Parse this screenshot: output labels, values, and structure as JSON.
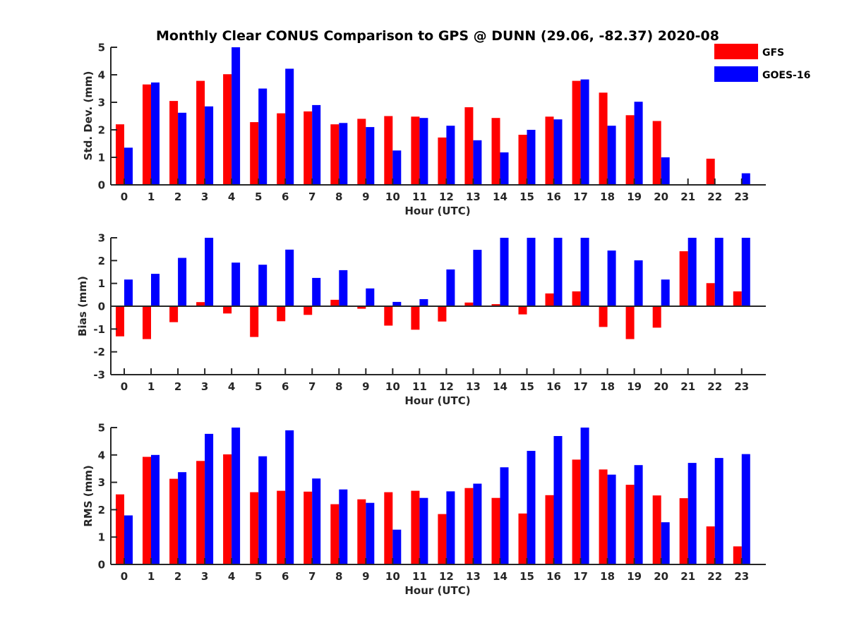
{
  "chart_data": {
    "title": "Monthly Clear CONUS Comparison to GPS @ DUNN (29.06, -82.37) 2020-08",
    "type": "bar",
    "legend": {
      "placement": "top-right",
      "entries": [
        {
          "name": "GFS",
          "color": "#ff0000"
        },
        {
          "name": "GOES-16",
          "color": "#0000ff"
        }
      ]
    },
    "categories": [
      "0",
      "1",
      "2",
      "3",
      "4",
      "5",
      "6",
      "7",
      "8",
      "9",
      "10",
      "11",
      "12",
      "13",
      "14",
      "15",
      "16",
      "17",
      "18",
      "19",
      "20",
      "21",
      "22",
      "23"
    ],
    "xlim": [
      -0.5,
      23.9
    ],
    "panels": [
      {
        "id": "stddev",
        "type": "bar",
        "xlabel": "Hour (UTC)",
        "ylabel": "Std. Dev. (mm)",
        "ylim": [
          0,
          5
        ],
        "yticks": [
          0,
          1,
          2,
          3,
          4,
          5
        ],
        "zero_line": false,
        "series": [
          {
            "name": "GFS",
            "color": "#ff0000",
            "values": [
              2.2,
              3.65,
              3.05,
              3.78,
              4.02,
              2.28,
              2.6,
              2.67,
              2.2,
              2.4,
              2.5,
              2.48,
              1.72,
              2.82,
              2.43,
              1.82,
              2.48,
              3.78,
              3.35,
              2.53,
              2.32,
              0.0,
              0.95,
              0.02
            ]
          },
          {
            "name": "GOES-16",
            "color": "#0000ff",
            "values": [
              1.35,
              3.72,
              2.62,
              2.85,
              5.0,
              3.5,
              4.22,
              2.9,
              2.25,
              2.1,
              1.25,
              2.43,
              2.15,
              1.62,
              1.18,
              2.0,
              2.38,
              3.83,
              2.15,
              3.02,
              1.0,
              0.0,
              0.02,
              0.42
            ]
          }
        ]
      },
      {
        "id": "bias",
        "type": "bar",
        "xlabel": "Hour (UTC)",
        "ylabel": "Bias (mm)",
        "ylim": [
          -3,
          3
        ],
        "yticks": [
          -3,
          -2,
          -1,
          0,
          1,
          2,
          3
        ],
        "zero_line": true,
        "series": [
          {
            "name": "GFS",
            "color": "#ff0000",
            "values": [
              -1.32,
              -1.44,
              -0.7,
              0.18,
              -0.32,
              -1.35,
              -0.66,
              -0.38,
              0.28,
              -0.11,
              -0.85,
              -1.03,
              -0.67,
              0.16,
              0.09,
              -0.36,
              0.56,
              0.65,
              -0.91,
              -1.44,
              -0.94,
              2.41,
              1.01,
              0.65
            ]
          },
          {
            "name": "GOES-16",
            "color": "#0000ff",
            "values": [
              1.17,
              1.42,
              2.12,
              3.0,
              1.91,
              1.82,
              2.48,
              1.24,
              1.58,
              0.78,
              0.19,
              0.31,
              1.61,
              2.47,
              3.0,
              3.0,
              3.0,
              3.0,
              2.44,
              2.01,
              1.17,
              3.0,
              3.0,
              3.0
            ]
          }
        ]
      },
      {
        "id": "rms",
        "type": "bar",
        "xlabel": "Hour (UTC)",
        "ylabel": "RMS (mm)",
        "ylim": [
          0,
          5
        ],
        "yticks": [
          0,
          1,
          2,
          3,
          4,
          5
        ],
        "zero_line": false,
        "series": [
          {
            "name": "GFS",
            "color": "#ff0000",
            "values": [
              2.56,
              3.93,
              3.13,
              3.78,
              4.02,
              2.64,
              2.69,
              2.66,
              2.2,
              2.38,
              2.64,
              2.69,
              1.84,
              2.79,
              2.43,
              1.86,
              2.53,
              3.83,
              3.47,
              2.91,
              2.52,
              2.42,
              1.39,
              0.66
            ]
          },
          {
            "name": "GOES-16",
            "color": "#0000ff",
            "values": [
              1.79,
              4.0,
              3.37,
              4.77,
              5.0,
              3.95,
              4.9,
              3.14,
              2.74,
              2.25,
              1.27,
              2.43,
              2.67,
              2.95,
              3.55,
              4.15,
              4.69,
              5.0,
              3.28,
              3.63,
              1.54,
              3.71,
              3.89,
              4.03
            ]
          }
        ]
      }
    ]
  }
}
